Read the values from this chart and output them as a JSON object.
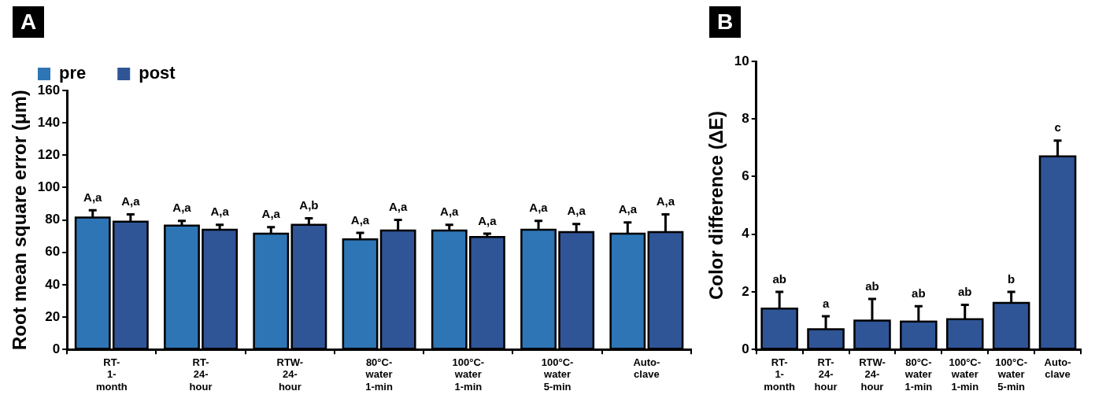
{
  "chart_data": [
    {
      "type": "bar",
      "title": "A",
      "ylabel": "Root mean square error (μm)",
      "categories": [
        "RT-\n1-\nmonth",
        "RT-\n24-\nhour",
        "RTW-\n24-\nhour",
        "80°C-\nwater\n1-min",
        "100°C-\nwater\n1-min",
        "100°C-\nwater\n5-min",
        "Auto-\nclave"
      ],
      "series": [
        {
          "name": "pre",
          "color": "#2e75b6",
          "values": [
            81.5,
            76.5,
            71.5,
            68,
            73.5,
            74,
            71.5
          ],
          "errors": [
            4.5,
            3,
            4,
            4,
            3.5,
            5.5,
            7
          ]
        },
        {
          "name": "post",
          "color": "#2f5597",
          "values": [
            79,
            74,
            77,
            73.5,
            69.5,
            72.5,
            72.5
          ],
          "errors": [
            4.5,
            3,
            4,
            6.5,
            2,
            5,
            11
          ]
        }
      ],
      "ylim": [
        0,
        160
      ],
      "yticks": [
        0,
        20,
        40,
        60,
        80,
        100,
        120,
        140,
        160
      ],
      "grid": false,
      "legend": "top left",
      "annotations": [
        "A,a",
        "A,a",
        "A,a",
        "A,a",
        "A,a",
        "A,b",
        "A,a",
        "A,a",
        "A,a",
        "A,a",
        "A,a",
        "A,a",
        "A,a",
        "A,a"
      ]
    },
    {
      "type": "bar",
      "title": "B",
      "ylabel": "Color difference (ΔE)",
      "categories": [
        "RT-\n1-\nmonth",
        "RT-\n24-\nhour",
        "RTW-\n24-\nhour",
        "80°C-\nwater\n1-min",
        "100°C-\nwater\n1-min",
        "100°C-\nwater\n5-min",
        "Auto-\nclave"
      ],
      "series": [
        {
          "color": "#2f5597",
          "values": [
            1.42,
            0.7,
            1.0,
            0.97,
            1.05,
            1.62,
            6.7
          ],
          "errors": [
            0.58,
            0.45,
            0.75,
            0.53,
            0.5,
            0.38,
            0.55
          ]
        }
      ],
      "ylim": [
        0,
        10
      ],
      "yticks": [
        0,
        2,
        4,
        6,
        8,
        10
      ],
      "grid": false,
      "annotations": [
        "ab",
        "a",
        "ab",
        "ab",
        "ab",
        "b",
        "c"
      ]
    }
  ]
}
